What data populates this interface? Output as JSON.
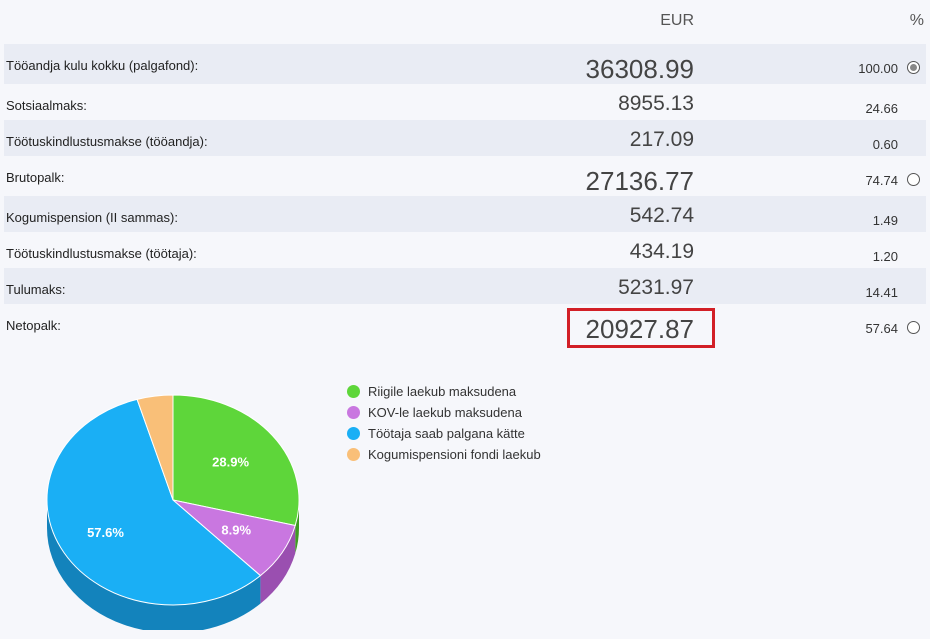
{
  "header": {
    "eur": "EUR",
    "pct": "%"
  },
  "rows": [
    {
      "label": "Tööandja kulu kokku (palgafond):",
      "amount": "36308.99",
      "pct": "100.00",
      "radio": "checked"
    },
    {
      "label": "Sotsiaalmaks:",
      "amount": "8955.13",
      "pct": "24.66"
    },
    {
      "label": "Töötuskindlustusmakse (tööandja):",
      "amount": "217.09",
      "pct": "0.60"
    },
    {
      "label": "Brutopalk:",
      "amount": "27136.77",
      "pct": "74.74",
      "radio": "unchecked"
    },
    {
      "label": "Kogumispension (II sammas):",
      "amount": "542.74",
      "pct": "1.49"
    },
    {
      "label": "Töötuskindlustusmakse (töötaja):",
      "amount": "434.19",
      "pct": "1.20"
    },
    {
      "label": "Tulumaks:",
      "amount": "5231.97",
      "pct": "14.41"
    },
    {
      "label": "Netopalk:",
      "amount": "20927.87",
      "pct": "57.64",
      "radio": "unchecked"
    }
  ],
  "legend": [
    {
      "label": "Riigile laekub maksudena",
      "color": "#5ed63a"
    },
    {
      "label": "KOV-le laekub maksudena",
      "color": "#c977e0"
    },
    {
      "label": "Töötaja saab palgana kätte",
      "color": "#1aaff5"
    },
    {
      "label": "Kogumispensioni fondi laekub",
      "color": "#f9bf78"
    }
  ],
  "chart_data": {
    "type": "pie",
    "categories": [
      "Riigile laekub maksudena",
      "KOV-le laekub maksudena",
      "Töötaja saab palgana kätte",
      "Kogumispensioni fondi laekub"
    ],
    "values": [
      28.9,
      8.9,
      57.6,
      4.6
    ],
    "data_labels": [
      "28.9%",
      "8.9%",
      "57.6%",
      ""
    ],
    "colors": [
      "#5ed63a",
      "#c977e0",
      "#1aaff5",
      "#f9bf78"
    ],
    "shadow_colors": [
      "#3f9b22",
      "#9a4fb0",
      "#1383bc",
      "#c68d4c"
    ]
  }
}
